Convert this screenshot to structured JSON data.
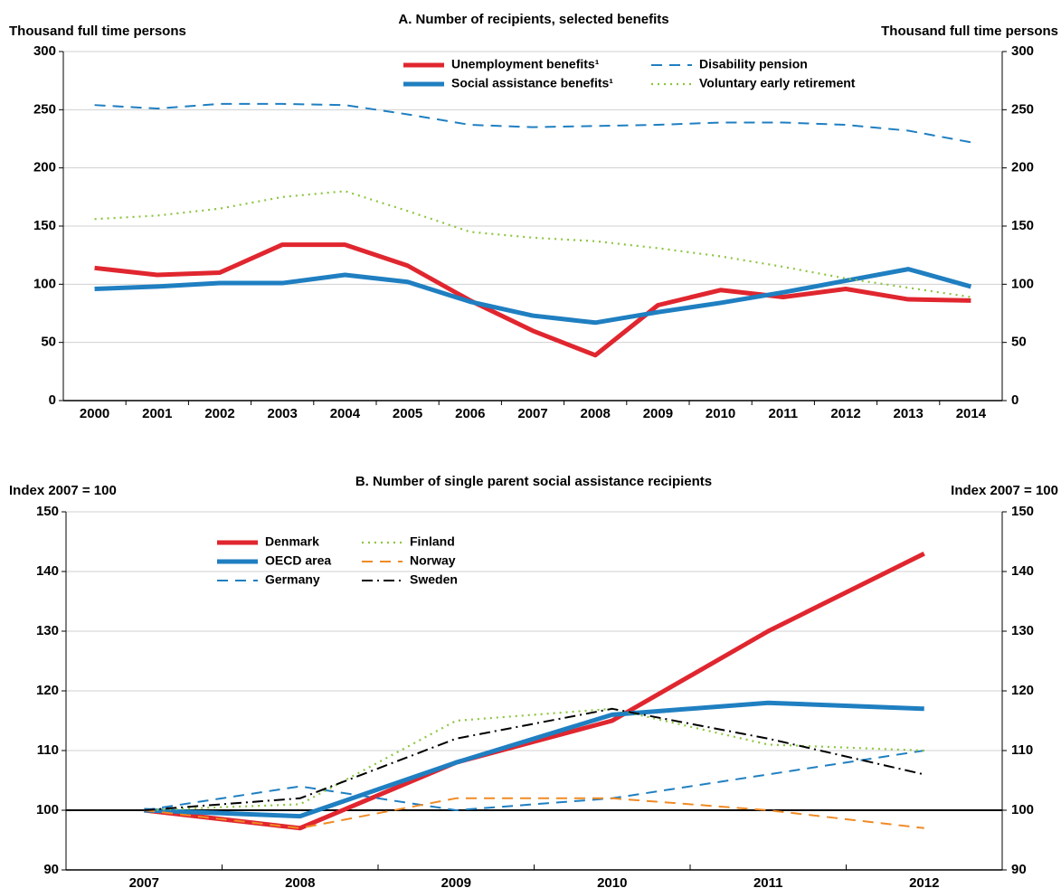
{
  "chart_data": [
    {
      "type": "line",
      "title": "A. Number of recipients, selected benefits",
      "ylabel": "Thousand full time persons",
      "y2label": "Thousand full time persons",
      "categories": [
        "2000",
        "2001",
        "2002",
        "2003",
        "2004",
        "2005",
        "2006",
        "2007",
        "2008",
        "2009",
        "2010",
        "2011",
        "2012",
        "2013",
        "2014"
      ],
      "ylim": [
        0,
        300
      ],
      "yticks": [
        0,
        50,
        100,
        150,
        200,
        250,
        300
      ],
      "grid": true,
      "series": [
        {
          "name": "Unemployment benefits¹",
          "color": "#e0262f",
          "style": "thick",
          "values": [
            114,
            108,
            110,
            134,
            134,
            116,
            86,
            60,
            39,
            82,
            95,
            89,
            96,
            87,
            86
          ]
        },
        {
          "name": "Social assistance benefits¹",
          "color": "#1f7fc1",
          "style": "thick",
          "values": [
            96,
            98,
            101,
            101,
            108,
            102,
            85,
            73,
            67,
            76,
            84,
            93,
            103,
            113,
            98
          ]
        },
        {
          "name": "Disability pension",
          "color": "#1f7fc1",
          "style": "dashed",
          "values": [
            254,
            251,
            255,
            255,
            254,
            246,
            237,
            235,
            236,
            237,
            239,
            239,
            237,
            232,
            222
          ]
        },
        {
          "name": "Voluntary early retirement",
          "color": "#8cc63f",
          "style": "dotted",
          "values": [
            156,
            159,
            165,
            175,
            180,
            163,
            145,
            140,
            137,
            131,
            124,
            115,
            105,
            97,
            89
          ]
        }
      ]
    },
    {
      "type": "line",
      "title": "B. Number of single parent social assistance recipients",
      "ylabel": "Index 2007 = 100",
      "y2label": "Index 2007 = 100",
      "categories": [
        "2007",
        "2008",
        "2009",
        "2010",
        "2011",
        "2012"
      ],
      "ylim": [
        90,
        150
      ],
      "yticks": [
        90,
        100,
        110,
        120,
        130,
        140,
        150
      ],
      "grid": true,
      "reference_line": 100,
      "series": [
        {
          "name": "Denmark",
          "color": "#e0262f",
          "style": "thick",
          "values": [
            100,
            97,
            108,
            115,
            130,
            143
          ]
        },
        {
          "name": "OECD area",
          "color": "#1f7fc1",
          "style": "thick",
          "values": [
            100,
            99,
            108,
            116,
            118,
            117
          ]
        },
        {
          "name": "Germany",
          "color": "#1f7fc1",
          "style": "dashed",
          "values": [
            100,
            104,
            100,
            102,
            106,
            110
          ]
        },
        {
          "name": "Finland",
          "color": "#8cc63f",
          "style": "dotted",
          "values": [
            100,
            101,
            115,
            117,
            111,
            110
          ]
        },
        {
          "name": "Norway",
          "color": "#f08a24",
          "style": "dashed",
          "values": [
            100,
            97,
            102,
            102,
            100,
            97
          ]
        },
        {
          "name": "Sweden",
          "color": "#000000",
          "style": "dashdot",
          "values": [
            100,
            102,
            112,
            117,
            112,
            106
          ]
        }
      ]
    }
  ]
}
